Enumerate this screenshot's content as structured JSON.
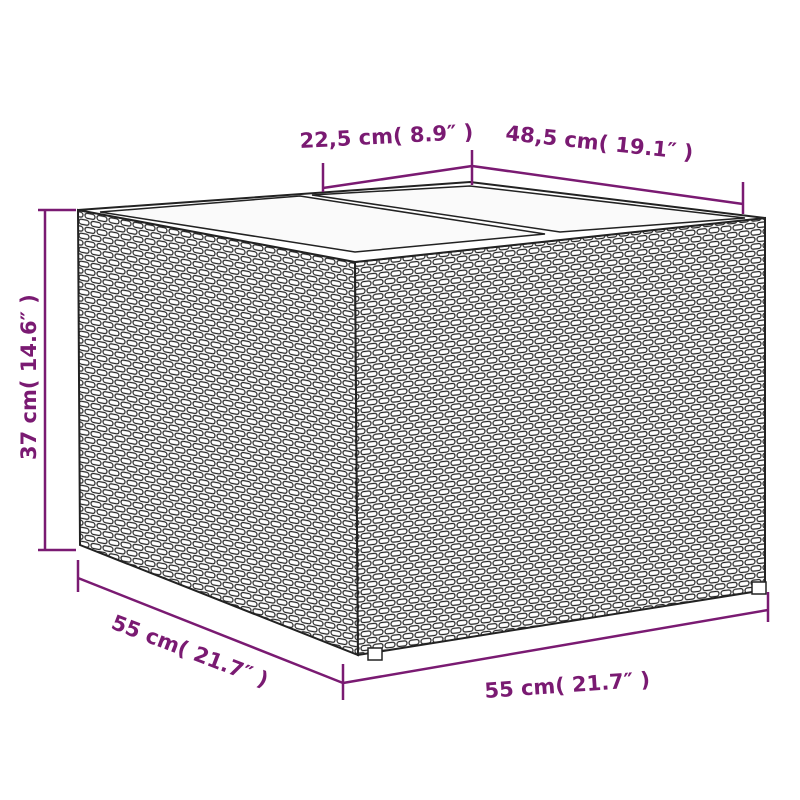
{
  "accent_color": "#7a1a72",
  "product": "wicker storage side table with glass top",
  "dimensions": {
    "top_depth": "22,5 cm( 8.9″ )",
    "top_width": "48,5 cm( 19.1″ )",
    "height": "37 cm( 14.6″ )",
    "depth": "55 cm( 21.7″ )",
    "width": "55 cm( 21.7″ )"
  }
}
